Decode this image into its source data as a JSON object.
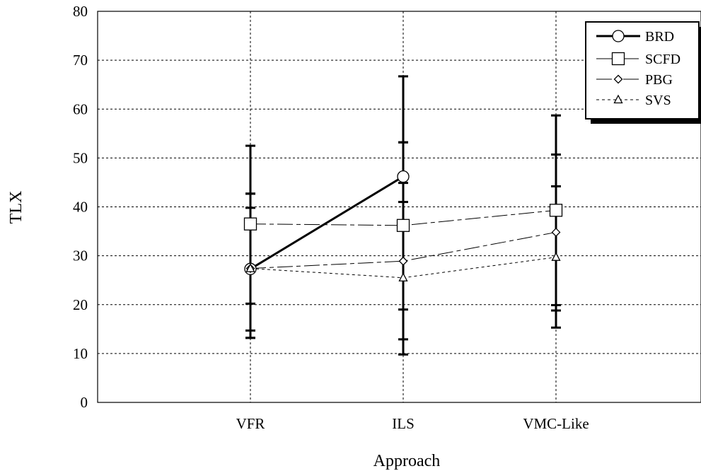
{
  "chart_data": {
    "type": "line",
    "xlabel": "Approach",
    "ylabel": "TLX",
    "categories": [
      "VFR",
      "ILS",
      "VMC-Like"
    ],
    "ylim": [
      0,
      80
    ],
    "yticks": [
      0,
      10,
      20,
      30,
      40,
      50,
      60,
      70,
      80
    ],
    "grid": true,
    "legend_position": "top-right",
    "series": [
      {
        "name": "BRD",
        "marker": "circle",
        "line": "solid-thick",
        "values": [
          27.3,
          46.2,
          null
        ],
        "err_low": [
          13.2,
          41.0,
          null
        ],
        "err_high": [
          42.7,
          53.2,
          null
        ]
      },
      {
        "name": "SCFD",
        "marker": "square",
        "line": "long-dash",
        "values": [
          36.5,
          36.2,
          39.3
        ],
        "err_low": [
          20.2,
          19.0,
          19.9
        ],
        "err_high": [
          52.5,
          53.2,
          58.7
        ]
      },
      {
        "name": "PBG",
        "marker": "diamond",
        "line": "long-dash",
        "values": [
          27.4,
          28.9,
          34.8
        ],
        "err_low": [
          14.7,
          12.9,
          15.3
        ],
        "err_high": [
          39.8,
          44.9,
          50.7
        ]
      },
      {
        "name": "SVS",
        "marker": "triangle",
        "line": "short-dash",
        "values": [
          27.4,
          25.5,
          29.7
        ],
        "err_low": [
          13.2,
          9.8,
          18.8
        ],
        "err_high": [
          42.7,
          66.7,
          44.2
        ]
      }
    ]
  }
}
